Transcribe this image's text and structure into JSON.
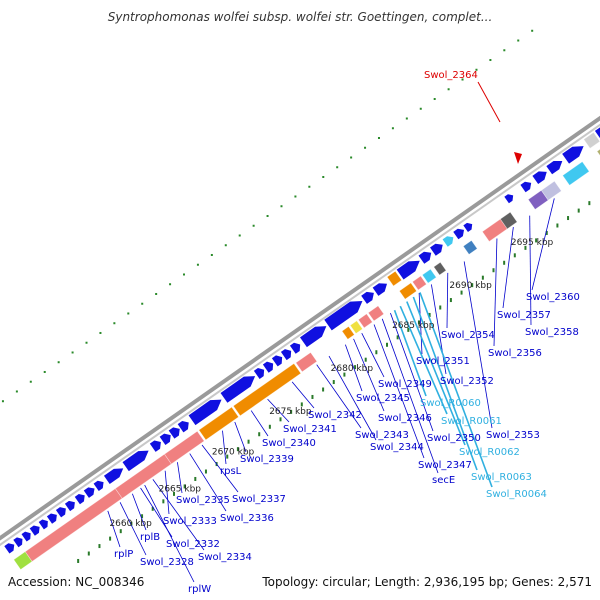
{
  "title": "Syntrophomonas wolfei subsp. wolfei str. Goettingen, complet...",
  "accession": "Accession: NC_008346",
  "topology": "Topology: circular; Length: 2,936,195 bp; Genes: 2,571",
  "colors": {
    "backbone": "#a0a0a0",
    "forward_gene": "#1010e0",
    "rrna": "#f08080",
    "trna": "#40c8f0",
    "orange": "#f08c00",
    "olive": "#b0b070",
    "purple": "#8060c0",
    "gray_block": "#606060",
    "label_blue": "#0000cc",
    "label_cyan": "#30b0e0",
    "highlight_red": "#dd0000"
  },
  "kbp_labels": [
    "2660 kbp",
    "2665 kbp",
    "2670 kbp",
    "2675 kbp",
    "2680 kbp",
    "2685 kbp",
    "2690 kbp",
    "2695 kbp"
  ],
  "highlight": {
    "label": "Swol_2364"
  },
  "gene_labels": [
    {
      "id": "rplW",
      "color": "label_blue"
    },
    {
      "id": "rplP",
      "color": "label_blue"
    },
    {
      "id": "Swol_2328",
      "color": "label_blue"
    },
    {
      "id": "rplB",
      "color": "label_blue"
    },
    {
      "id": "Swol_2332",
      "color": "label_blue"
    },
    {
      "id": "Swol_2334",
      "color": "label_blue"
    },
    {
      "id": "Swol_2333",
      "color": "label_blue"
    },
    {
      "id": "Swol_2335",
      "color": "label_blue"
    },
    {
      "id": "Swol_2336",
      "color": "label_blue"
    },
    {
      "id": "Swol_2337",
      "color": "label_blue"
    },
    {
      "id": "rpsL",
      "color": "label_blue"
    },
    {
      "id": "Swol_2339",
      "color": "label_blue"
    },
    {
      "id": "Swol_2340",
      "color": "label_blue"
    },
    {
      "id": "Swol_2341",
      "color": "label_blue"
    },
    {
      "id": "Swol_2342",
      "color": "label_blue"
    },
    {
      "id": "Swol_2343",
      "color": "label_blue"
    },
    {
      "id": "Swol_2344",
      "color": "label_blue"
    },
    {
      "id": "Swol_2345",
      "color": "label_blue"
    },
    {
      "id": "Swol_2346",
      "color": "label_blue"
    },
    {
      "id": "Swol_2349",
      "color": "label_blue"
    },
    {
      "id": "Swol_2347",
      "color": "label_blue"
    },
    {
      "id": "secE",
      "color": "label_blue"
    },
    {
      "id": "Swol_2350",
      "color": "label_blue"
    },
    {
      "id": "Swol_2351",
      "color": "label_blue"
    },
    {
      "id": "Swol_2352",
      "color": "label_blue"
    },
    {
      "id": "Swol_2354",
      "color": "label_blue"
    },
    {
      "id": "Swol_2353",
      "color": "label_blue"
    },
    {
      "id": "Swol_2356",
      "color": "label_blue"
    },
    {
      "id": "Swol_2357",
      "color": "label_blue"
    },
    {
      "id": "Swol_2358",
      "color": "label_blue"
    },
    {
      "id": "Swol_2360",
      "color": "label_blue"
    },
    {
      "id": "Swol_R0060",
      "color": "label_cyan"
    },
    {
      "id": "Swol_R0061",
      "color": "label_cyan"
    },
    {
      "id": "Swol_R0062",
      "color": "label_cyan"
    },
    {
      "id": "Swol_R0063",
      "color": "label_cyan"
    },
    {
      "id": "Swol_R0064",
      "color": "label_cyan"
    }
  ]
}
